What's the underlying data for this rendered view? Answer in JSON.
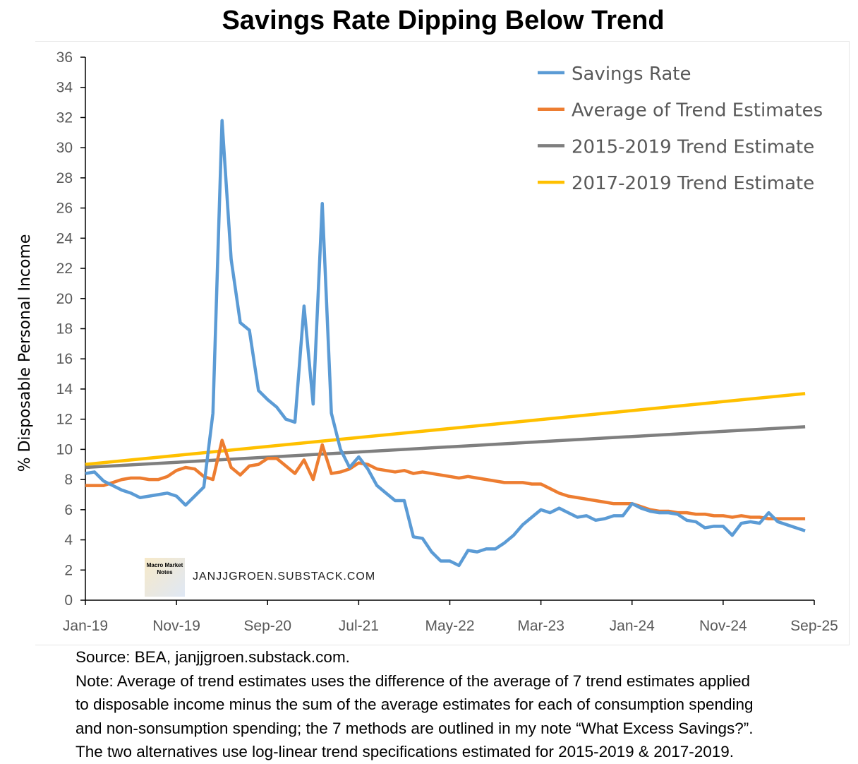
{
  "chart_data": {
    "type": "line",
    "title": "Savings Rate Dipping Below Trend",
    "ylabel": "% Disposable Personal Income",
    "xlabel": "",
    "ylim": [
      0,
      36
    ],
    "yticks": [
      "0",
      "2",
      "4",
      "6",
      "8",
      "10",
      "12",
      "14",
      "16",
      "18",
      "20",
      "22",
      "24",
      "26",
      "28",
      "30",
      "32",
      "34",
      "36"
    ],
    "xticks": [
      "Jan-19",
      "Nov-19",
      "Sep-20",
      "Jul-21",
      "May-22",
      "Mar-23",
      "Jan-24",
      "Nov-24",
      "Sep-25"
    ],
    "x_start": "Jan-19",
    "x_frequency": "monthly",
    "n_months_axis": 80,
    "legend_position": "top-right",
    "grid": false,
    "series": [
      {
        "name": "Savings Rate",
        "color": "#5b9bd5",
        "values": [
          8.4,
          8.5,
          7.9,
          7.6,
          7.3,
          7.1,
          6.8,
          6.9,
          7.0,
          7.1,
          6.9,
          6.3,
          6.9,
          7.5,
          12.4,
          31.8,
          22.6,
          18.4,
          17.9,
          13.9,
          13.3,
          12.8,
          12.0,
          11.8,
          19.5,
          13.0,
          26.3,
          12.4,
          10.0,
          8.8,
          9.5,
          8.7,
          7.6,
          7.1,
          6.6,
          6.6,
          4.2,
          4.1,
          3.2,
          2.6,
          2.6,
          2.3,
          3.3,
          3.2,
          3.4,
          3.4,
          3.8,
          4.3,
          5.0,
          5.5,
          6.0,
          5.8,
          6.1,
          5.8,
          5.5,
          5.6,
          5.3,
          5.4,
          5.6,
          5.6,
          6.4,
          6.1,
          5.9,
          5.8,
          5.8,
          5.7,
          5.3,
          5.2,
          4.8,
          4.9,
          4.9,
          4.3,
          5.1,
          5.2,
          5.1,
          5.8,
          5.2,
          5.0,
          4.8,
          4.6
        ]
      },
      {
        "name": "Average of Trend Estimates",
        "color": "#ed7d31",
        "values": [
          7.6,
          7.6,
          7.6,
          7.8,
          8.0,
          8.1,
          8.1,
          8.0,
          8.0,
          8.2,
          8.6,
          8.8,
          8.7,
          8.2,
          8.0,
          10.6,
          8.8,
          8.3,
          8.9,
          9.0,
          9.4,
          9.4,
          8.9,
          8.4,
          9.3,
          8.0,
          10.3,
          8.4,
          8.5,
          8.7,
          9.1,
          9.0,
          8.7,
          8.6,
          8.5,
          8.6,
          8.4,
          8.5,
          8.4,
          8.3,
          8.2,
          8.1,
          8.2,
          8.1,
          8.0,
          7.9,
          7.8,
          7.8,
          7.8,
          7.7,
          7.7,
          7.4,
          7.1,
          6.9,
          6.8,
          6.7,
          6.6,
          6.5,
          6.4,
          6.4,
          6.4,
          6.2,
          6.0,
          5.9,
          5.9,
          5.8,
          5.8,
          5.7,
          5.7,
          5.6,
          5.6,
          5.5,
          5.6,
          5.5,
          5.5,
          5.4,
          5.4,
          5.4,
          5.4,
          5.4
        ]
      },
      {
        "name": "2015-2019 Trend Estimate",
        "color": "#7f7f7f",
        "linear": true,
        "start": 8.8,
        "end": 11.5
      },
      {
        "name": "2017-2019 Trend Estimate",
        "color": "#ffc000",
        "linear": true,
        "start": 9.0,
        "end": 13.7
      }
    ]
  },
  "watermark": "JANJJGROEN.SUBSTACK.COM",
  "logo_text": "Macro Market Notes",
  "footer": {
    "lines": [
      "Source: BEA, janjjgroen.substack.com.",
      "Note: Average of trend estimates uses the difference of the average of 7 trend estimates applied",
      "to disposable income minus the sum of the average estimates for each of consumption spending",
      "and non-sonsumption spending; the 7 methods are outlined in my note “What Excess Savings?”.",
      "The two alternatives use log-linear trend specifications estimated for 2015-2019 & 2017-2019."
    ]
  }
}
